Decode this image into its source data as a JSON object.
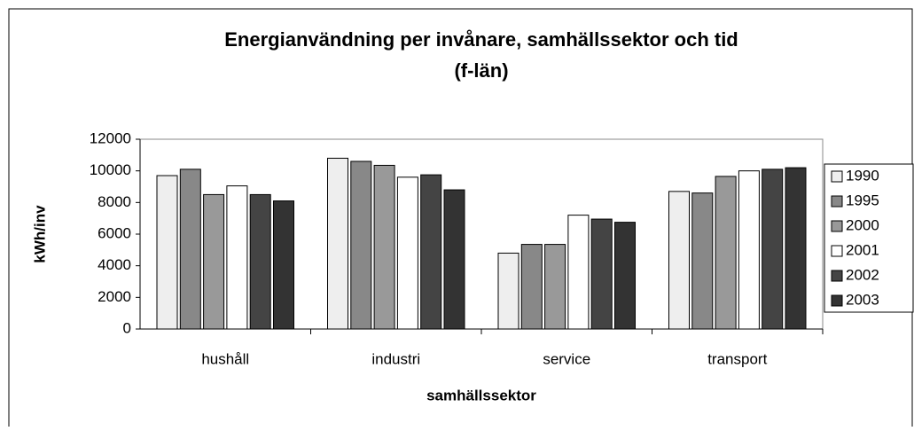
{
  "chart_data": {
    "type": "bar",
    "title": [
      "Energianvändning per invånare, samhällssektor och tid",
      "(f-län)"
    ],
    "x_label": "samhällssektor",
    "y_label": "kWh/inv",
    "categories": [
      "hushåll",
      "industri",
      "service",
      "transport"
    ],
    "series": [
      {
        "name": "1990",
        "color": "#eeeeee",
        "values": [
          9700,
          10800,
          4800,
          8700
        ]
      },
      {
        "name": "1995",
        "color": "#888888",
        "values": [
          10100,
          10600,
          5350,
          8600
        ]
      },
      {
        "name": "2000",
        "color": "#999999",
        "values": [
          8500,
          10350,
          5350,
          9650
        ]
      },
      {
        "name": "2001",
        "color": "#ffffff",
        "values": [
          9050,
          9600,
          7200,
          10000
        ]
      },
      {
        "name": "2002",
        "color": "#444444",
        "values": [
          8500,
          9750,
          6950,
          10100
        ]
      },
      {
        "name": "2003",
        "color": "#333333",
        "values": [
          8100,
          8800,
          6750,
          10200
        ]
      }
    ],
    "ylim": [
      0,
      12000
    ],
    "yticks": [
      0,
      2000,
      4000,
      6000,
      8000,
      10000,
      12000
    ],
    "legend": "right"
  }
}
